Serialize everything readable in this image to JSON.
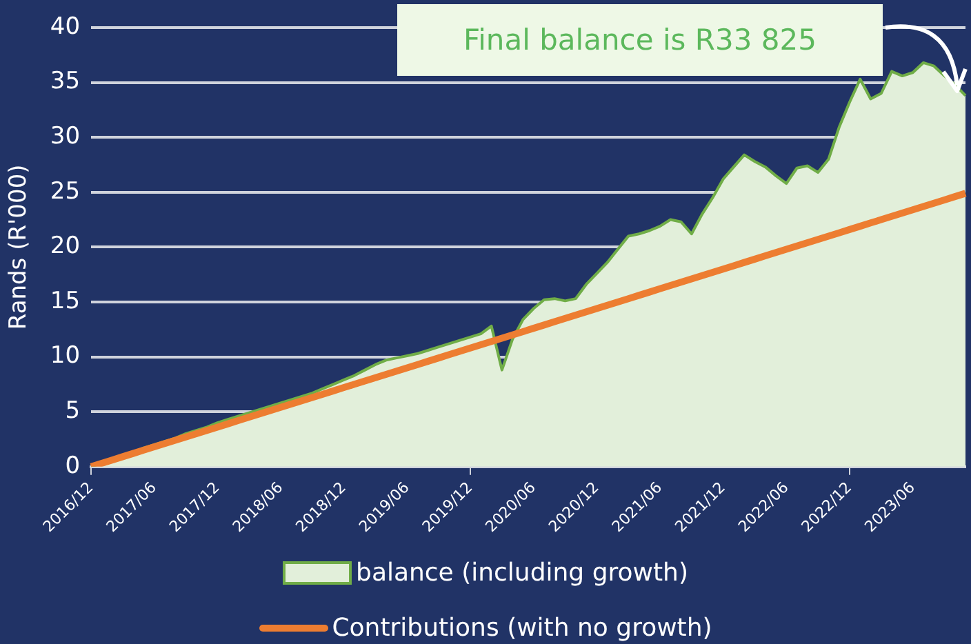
{
  "chart_data": {
    "type": "area",
    "ylabel": "Rands (R'000)",
    "annotations": [
      "Final balance is R33 825"
    ],
    "categories": [
      "2016/12",
      null,
      null,
      null,
      null,
      null,
      "2017/06",
      null,
      null,
      null,
      null,
      null,
      "2017/12",
      null,
      null,
      null,
      null,
      null,
      "2018/06",
      null,
      null,
      null,
      null,
      null,
      "2018/12",
      null,
      null,
      null,
      null,
      null,
      "2019/06",
      null,
      null,
      null,
      null,
      null,
      "2019/12",
      null,
      null,
      null,
      null,
      null,
      "2020/06",
      null,
      null,
      null,
      null,
      null,
      "2020/12",
      null,
      null,
      null,
      null,
      null,
      "2021/06",
      null,
      null,
      null,
      null,
      null,
      "2021/12",
      null,
      null,
      null,
      null,
      null,
      "2022/06",
      null,
      null,
      null,
      null,
      null,
      "2022/12",
      null,
      null,
      null,
      null,
      null,
      "2023/06",
      null,
      null,
      null,
      null,
      null
    ],
    "series": [
      {
        "name": "balance (including growth)",
        "color": "#70ad47",
        "values": [
          0,
          0.3,
          0.7,
          1.0,
          1.3,
          1.7,
          2.0,
          2.3,
          2.6,
          3.0,
          3.3,
          3.6,
          4.0,
          4.3,
          4.6,
          4.9,
          5.2,
          5.5,
          5.8,
          6.1,
          6.4,
          6.7,
          7.1,
          7.5,
          7.9,
          8.3,
          8.8,
          9.3,
          9.7,
          9.9,
          10.1,
          10.3,
          10.6,
          10.9,
          11.2,
          11.5,
          11.8,
          12.1,
          12.8,
          8.8,
          11.6,
          13.4,
          14.4,
          15.2,
          15.3,
          15.1,
          15.3,
          16.6,
          17.6,
          18.6,
          19.8,
          21.0,
          21.2,
          21.5,
          21.9,
          22.5,
          22.3,
          21.2,
          23.0,
          24.5,
          26.2,
          27.3,
          28.4,
          27.8,
          27.3,
          26.5,
          25.8,
          27.2,
          27.4,
          26.8,
          28.0,
          30.9,
          33.2,
          35.3,
          33.5,
          34.0,
          36.0,
          35.6,
          35.9,
          36.8,
          36.5,
          35.6,
          34.8,
          33.8
        ]
      },
      {
        "name": "Contributions (with no growth)",
        "type": "line",
        "color": "#ed7d31",
        "values": [
          0,
          0.3,
          0.6,
          0.9,
          1.2,
          1.5,
          1.8,
          2.1,
          2.4,
          2.7,
          3,
          3.3,
          3.6,
          3.9,
          4.2,
          4.5,
          4.8,
          5.1,
          5.4,
          5.7,
          6,
          6.3,
          6.6,
          6.9,
          7.2,
          7.5,
          7.8,
          8.1,
          8.4,
          8.7,
          9,
          9.3,
          9.6,
          9.9,
          10.2,
          10.5,
          10.8,
          11.1,
          11.4,
          11.7,
          12,
          12.3,
          12.6,
          12.9,
          13.2,
          13.5,
          13.8,
          14.1,
          14.4,
          14.7,
          15,
          15.3,
          15.6,
          15.9,
          16.2,
          16.5,
          16.8,
          17.1,
          17.4,
          17.7,
          18,
          18.3,
          18.6,
          18.9,
          19.2,
          19.5,
          19.8,
          20.1,
          20.4,
          20.7,
          21,
          21.3,
          21.6,
          21.9,
          22.2,
          22.5,
          22.8,
          23.1,
          23.4,
          23.7,
          24,
          24.3,
          24.6,
          24.9
        ]
      }
    ],
    "ylim": [
      0,
      40
    ],
    "yticks": [
      0,
      5,
      10,
      15,
      20,
      25,
      30,
      35,
      40
    ],
    "grid": "y",
    "legend": "bottom",
    "marker": "none"
  }
}
